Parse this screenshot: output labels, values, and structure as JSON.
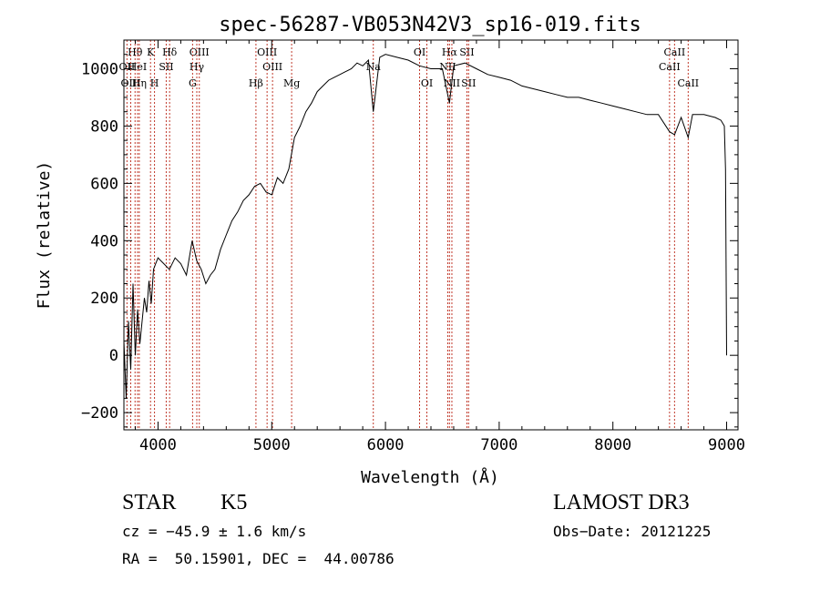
{
  "chart_data": {
    "type": "line",
    "title": "spec-56287-VB053N42V3_sp16-019.fits",
    "xlabel": "Wavelength (Å)",
    "ylabel": "Flux (relative)",
    "xlim": [
      3700,
      9100
    ],
    "ylim": [
      -260,
      1100
    ],
    "x_ticks": [
      4000,
      5000,
      6000,
      7000,
      8000,
      9000
    ],
    "x_tick_labels": [
      "4000",
      "5000",
      "6000",
      "7000",
      "8000",
      "9000"
    ],
    "y_ticks": [
      -200,
      0,
      200,
      400,
      600,
      800,
      1000
    ],
    "y_tick_labels": [
      "−200",
      "0",
      "200",
      "400",
      "600",
      "800",
      "1000"
    ],
    "grid": false,
    "legend": "none",
    "series": [
      {
        "name": "flux",
        "x": [
          3700,
          3720,
          3740,
          3760,
          3780,
          3800,
          3820,
          3840,
          3860,
          3880,
          3900,
          3920,
          3940,
          3960,
          3980,
          4000,
          4050,
          4100,
          4150,
          4200,
          4250,
          4300,
          4340,
          4380,
          4420,
          4460,
          4500,
          4550,
          4600,
          4650,
          4700,
          4750,
          4800,
          4850,
          4900,
          4950,
          5000,
          5050,
          5100,
          5150,
          5200,
          5250,
          5300,
          5350,
          5400,
          5450,
          5500,
          5550,
          5600,
          5650,
          5700,
          5750,
          5800,
          5850,
          5893,
          5950,
          6000,
          6100,
          6200,
          6300,
          6400,
          6500,
          6563,
          6600,
          6700,
          6800,
          6900,
          7000,
          7100,
          7200,
          7300,
          7400,
          7500,
          7600,
          7700,
          7800,
          7900,
          8000,
          8100,
          8200,
          8300,
          8400,
          8498,
          8542,
          8600,
          8662,
          8700,
          8800,
          8900,
          8950,
          8980,
          8990,
          9000
        ],
        "y": [
          50,
          -150,
          120,
          -50,
          250,
          0,
          160,
          40,
          120,
          200,
          150,
          260,
          180,
          300,
          320,
          340,
          320,
          300,
          340,
          320,
          280,
          400,
          330,
          300,
          250,
          280,
          300,
          370,
          420,
          470,
          500,
          540,
          560,
          590,
          600,
          570,
          560,
          620,
          600,
          650,
          760,
          800,
          850,
          880,
          920,
          940,
          960,
          970,
          980,
          990,
          1000,
          1020,
          1010,
          1030,
          850,
          1040,
          1050,
          1040,
          1030,
          1010,
          1000,
          1000,
          880,
          1010,
          1020,
          1000,
          980,
          970,
          960,
          940,
          930,
          920,
          910,
          900,
          900,
          890,
          880,
          870,
          860,
          850,
          840,
          840,
          780,
          770,
          830,
          760,
          840,
          840,
          830,
          820,
          800,
          650,
          0
        ]
      }
    ],
    "line_markers": [
      {
        "label": "Hθ",
        "wavelength": 3798,
        "row": 1
      },
      {
        "label": "OII",
        "wavelength": 3727,
        "row": 2
      },
      {
        "label": "HeI",
        "wavelength": 3820,
        "row": 2
      },
      {
        "label": "OIII",
        "wavelength": 3760,
        "row": 3
      },
      {
        "label": "Hη",
        "wavelength": 3835,
        "row": 3
      },
      {
        "label": "K",
        "wavelength": 3934,
        "row": 1
      },
      {
        "label": "SII",
        "wavelength": 4072,
        "row": 2
      },
      {
        "label": "H",
        "wavelength": 3969,
        "row": 3
      },
      {
        "label": "Hδ",
        "wavelength": 4102,
        "row": 1
      },
      {
        "label": "OIII",
        "wavelength": 4363,
        "row": 1
      },
      {
        "label": "Hγ",
        "wavelength": 4341,
        "row": 2
      },
      {
        "label": "G",
        "wavelength": 4304,
        "row": 3
      },
      {
        "label": "Hβ",
        "wavelength": 4861,
        "row": 3
      },
      {
        "label": "OIII",
        "wavelength": 4959,
        "row": 1
      },
      {
        "label": "OIII",
        "wavelength": 5007,
        "row": 2
      },
      {
        "label": "Mg",
        "wavelength": 5175,
        "row": 3
      },
      {
        "label": "Na",
        "wavelength": 5893,
        "row": 2
      },
      {
        "label": "OI",
        "wavelength": 6300,
        "row": 1
      },
      {
        "label": "OI",
        "wavelength": 6364,
        "row": 3
      },
      {
        "label": "Hα",
        "wavelength": 6563,
        "row": 1
      },
      {
        "label": "NII",
        "wavelength": 6548,
        "row": 2
      },
      {
        "label": "NII",
        "wavelength": 6584,
        "row": 3
      },
      {
        "label": "SII",
        "wavelength": 6716,
        "row": 1
      },
      {
        "label": "SII",
        "wavelength": 6731,
        "row": 3
      },
      {
        "label": "CaII",
        "wavelength": 8542,
        "row": 1
      },
      {
        "label": "CaII",
        "wavelength": 8498,
        "row": 2
      },
      {
        "label": "CaII",
        "wavelength": 8662,
        "row": 3
      }
    ]
  },
  "info": {
    "class": "STAR",
    "subclass": "K5",
    "survey": "LAMOST DR3",
    "redshift": "cz = −45.9 ± 1.6 km/s",
    "obs_date": "Obs−Date: 20121225",
    "coords": "RA =  50.15901, DEC =  44.00786"
  }
}
